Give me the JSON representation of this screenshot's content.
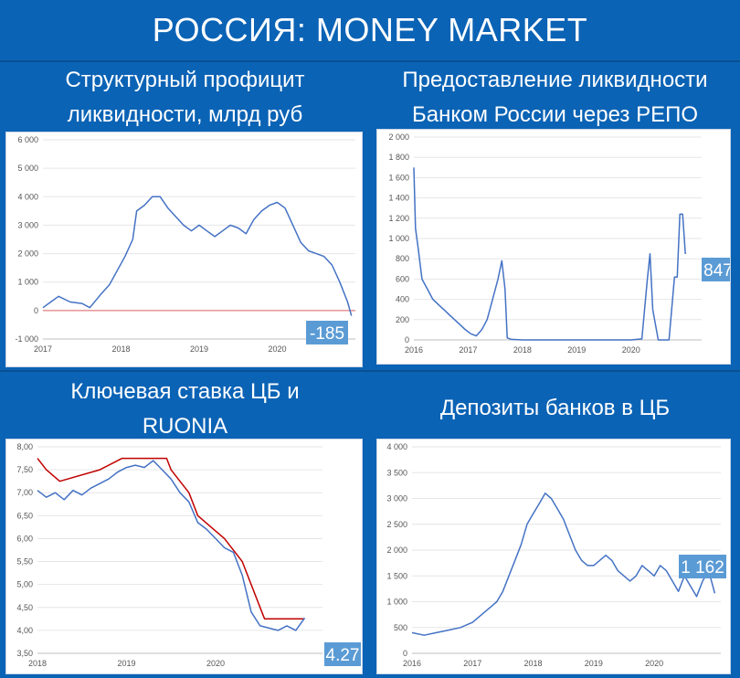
{
  "title": "РОССИЯ: MONEY MARKET",
  "panels": [
    {
      "title": "Структурный профицит\nликвидности, млрд руб"
    },
    {
      "title": "Предоставление ликвидности\nБанком России через РЕПО"
    },
    {
      "title": "Ключевая ставка ЦБ и\nRUONIA"
    },
    {
      "title": "Депозиты банков в ЦБ"
    }
  ],
  "colors": {
    "series": "#4472c4",
    "rate": "#c00000",
    "zero_line": "#e06666",
    "callout": "#5b9bd5"
  },
  "chart_data": [
    {
      "type": "line",
      "title": "Структурный профицит ликвидности, млрд руб",
      "x_ticks": [
        "2017",
        "2018",
        "2019",
        "2020"
      ],
      "y_ticks": [
        "6 000",
        "5 000",
        "4 000",
        "3 000",
        "2 000",
        "1 000",
        "0",
        "-1 000"
      ],
      "ylim": [
        -1000,
        6000
      ],
      "xlim": [
        2017,
        2021
      ],
      "reference_line": 0,
      "callout": "-185",
      "series": [
        {
          "points": [
            [
              2017.0,
              100
            ],
            [
              2017.1,
              300
            ],
            [
              2017.2,
              500
            ],
            [
              2017.35,
              300
            ],
            [
              2017.5,
              250
            ],
            [
              2017.6,
              100
            ],
            [
              2017.75,
              600
            ],
            [
              2017.85,
              900
            ],
            [
              2017.95,
              1400
            ],
            [
              2018.05,
              1900
            ],
            [
              2018.15,
              2500
            ],
            [
              2018.2,
              3500
            ],
            [
              2018.3,
              3700
            ],
            [
              2018.4,
              4000
            ],
            [
              2018.5,
              4000
            ],
            [
              2018.6,
              3600
            ],
            [
              2018.7,
              3300
            ],
            [
              2018.8,
              3000
            ],
            [
              2018.9,
              2800
            ],
            [
              2019.0,
              3000
            ],
            [
              2019.1,
              2800
            ],
            [
              2019.2,
              2600
            ],
            [
              2019.3,
              2800
            ],
            [
              2019.4,
              3000
            ],
            [
              2019.5,
              2900
            ],
            [
              2019.6,
              2700
            ],
            [
              2019.7,
              3200
            ],
            [
              2019.8,
              3500
            ],
            [
              2019.9,
              3700
            ],
            [
              2020.0,
              3800
            ],
            [
              2020.1,
              3600
            ],
            [
              2020.2,
              3000
            ],
            [
              2020.3,
              2400
            ],
            [
              2020.4,
              2100
            ],
            [
              2020.5,
              2000
            ],
            [
              2020.6,
              1900
            ],
            [
              2020.7,
              1600
            ],
            [
              2020.8,
              1000
            ],
            [
              2020.9,
              300
            ],
            [
              2020.95,
              -185
            ]
          ]
        }
      ]
    },
    {
      "type": "line",
      "title": "Предоставление ликвидности Банком России через РЕПО",
      "x_ticks": [
        "2016",
        "2017",
        "2018",
        "2019",
        "2020"
      ],
      "y_ticks": [
        "2 000",
        "1 800",
        "1 600",
        "1 400",
        "1 200",
        "1 000",
        "800",
        "600",
        "400",
        "200",
        "0"
      ],
      "ylim": [
        0,
        2000
      ],
      "xlim": [
        2016,
        2021.3
      ],
      "callout": "847",
      "series": [
        {
          "points": [
            [
              2016.0,
              1700
            ],
            [
              2016.03,
              1100
            ],
            [
              2016.08,
              900
            ],
            [
              2016.15,
              600
            ],
            [
              2016.25,
              500
            ],
            [
              2016.35,
              400
            ],
            [
              2016.45,
              350
            ],
            [
              2016.55,
              300
            ],
            [
              2016.65,
              250
            ],
            [
              2016.75,
              200
            ],
            [
              2016.85,
              150
            ],
            [
              2016.95,
              100
            ],
            [
              2017.05,
              60
            ],
            [
              2017.15,
              40
            ],
            [
              2017.25,
              100
            ],
            [
              2017.35,
              200
            ],
            [
              2017.45,
              400
            ],
            [
              2017.55,
              600
            ],
            [
              2017.62,
              780
            ],
            [
              2017.68,
              500
            ],
            [
              2017.72,
              20
            ],
            [
              2017.8,
              5
            ],
            [
              2018.0,
              0
            ],
            [
              2018.5,
              0
            ],
            [
              2019.0,
              0
            ],
            [
              2019.5,
              0
            ],
            [
              2020.0,
              0
            ],
            [
              2020.2,
              10
            ],
            [
              2020.3,
              600
            ],
            [
              2020.35,
              850
            ],
            [
              2020.4,
              300
            ],
            [
              2020.5,
              0
            ],
            [
              2020.7,
              0
            ],
            [
              2020.8,
              620
            ],
            [
              2020.85,
              620
            ],
            [
              2020.9,
              1240
            ],
            [
              2020.95,
              1240
            ],
            [
              2021.0,
              847
            ]
          ]
        }
      ]
    },
    {
      "type": "line",
      "title": "Ключевая ставка ЦБ и RUONIA",
      "x_ticks": [
        "2018",
        "2019",
        "2020"
      ],
      "y_ticks": [
        "8,00",
        "7,50",
        "7,00",
        "6,50",
        "6,00",
        "5,50",
        "5,00",
        "4,50",
        "4,00",
        "3,50"
      ],
      "ylim": [
        3.5,
        8.0
      ],
      "xlim": [
        2018,
        2021.2
      ],
      "callout": "4.27",
      "series": [
        {
          "points": [
            [
              2018.0,
              7.75
            ],
            [
              2018.1,
              7.5
            ],
            [
              2018.25,
              7.25
            ],
            [
              2018.7,
              7.5
            ],
            [
              2018.95,
              7.75
            ],
            [
              2019.45,
              7.75
            ],
            [
              2019.5,
              7.5
            ],
            [
              2019.6,
              7.25
            ],
            [
              2019.7,
              7.0
            ],
            [
              2019.8,
              6.5
            ],
            [
              2019.95,
              6.25
            ],
            [
              2020.1,
              6.0
            ],
            [
              2020.3,
              5.5
            ],
            [
              2020.5,
              4.5
            ],
            [
              2020.55,
              4.25
            ],
            [
              2021.0,
              4.25
            ]
          ]
        },
        {
          "points": [
            [
              2018.0,
              7.05
            ],
            [
              2018.1,
              6.9
            ],
            [
              2018.2,
              7.0
            ],
            [
              2018.3,
              6.85
            ],
            [
              2018.4,
              7.05
            ],
            [
              2018.5,
              6.95
            ],
            [
              2018.6,
              7.1
            ],
            [
              2018.7,
              7.2
            ],
            [
              2018.8,
              7.3
            ],
            [
              2018.9,
              7.45
            ],
            [
              2019.0,
              7.55
            ],
            [
              2019.1,
              7.6
            ],
            [
              2019.2,
              7.55
            ],
            [
              2019.3,
              7.7
            ],
            [
              2019.4,
              7.5
            ],
            [
              2019.5,
              7.3
            ],
            [
              2019.6,
              7.0
            ],
            [
              2019.7,
              6.8
            ],
            [
              2019.8,
              6.35
            ],
            [
              2019.9,
              6.2
            ],
            [
              2020.0,
              6.0
            ],
            [
              2020.1,
              5.8
            ],
            [
              2020.2,
              5.7
            ],
            [
              2020.3,
              5.2
            ],
            [
              2020.4,
              4.4
            ],
            [
              2020.5,
              4.1
            ],
            [
              2020.6,
              4.05
            ],
            [
              2020.7,
              4.0
            ],
            [
              2020.8,
              4.1
            ],
            [
              2020.9,
              4.0
            ],
            [
              2021.0,
              4.27
            ]
          ]
        }
      ]
    },
    {
      "type": "line",
      "title": "Депозиты банков в ЦБ",
      "x_ticks": [
        "2016",
        "2017",
        "2018",
        "2019",
        "2020"
      ],
      "y_ticks": [
        "4 000",
        "3 500",
        "3 000",
        "2 500",
        "2 000",
        "1 500",
        "1 000",
        "500",
        "0"
      ],
      "ylim": [
        0,
        4000
      ],
      "xlim": [
        2016,
        2021.1
      ],
      "callout": "1 162",
      "series": [
        {
          "points": [
            [
              2016.0,
              400
            ],
            [
              2016.2,
              350
            ],
            [
              2016.4,
              400
            ],
            [
              2016.6,
              450
            ],
            [
              2016.8,
              500
            ],
            [
              2017.0,
              600
            ],
            [
              2017.1,
              700
            ],
            [
              2017.2,
              800
            ],
            [
              2017.3,
              900
            ],
            [
              2017.4,
              1000
            ],
            [
              2017.5,
              1200
            ],
            [
              2017.6,
              1500
            ],
            [
              2017.7,
              1800
            ],
            [
              2017.8,
              2100
            ],
            [
              2017.9,
              2500
            ],
            [
              2018.0,
              2700
            ],
            [
              2018.1,
              2900
            ],
            [
              2018.2,
              3100
            ],
            [
              2018.3,
              3000
            ],
            [
              2018.4,
              2800
            ],
            [
              2018.5,
              2600
            ],
            [
              2018.6,
              2300
            ],
            [
              2018.7,
              2000
            ],
            [
              2018.8,
              1800
            ],
            [
              2018.9,
              1700
            ],
            [
              2019.0,
              1700
            ],
            [
              2019.1,
              1800
            ],
            [
              2019.2,
              1900
            ],
            [
              2019.3,
              1800
            ],
            [
              2019.4,
              1600
            ],
            [
              2019.5,
              1500
            ],
            [
              2019.6,
              1400
            ],
            [
              2019.7,
              1500
            ],
            [
              2019.8,
              1700
            ],
            [
              2019.9,
              1600
            ],
            [
              2020.0,
              1500
            ],
            [
              2020.1,
              1700
            ],
            [
              2020.2,
              1600
            ],
            [
              2020.3,
              1400
            ],
            [
              2020.4,
              1200
            ],
            [
              2020.5,
              1500
            ],
            [
              2020.6,
              1300
            ],
            [
              2020.7,
              1100
            ],
            [
              2020.8,
              1400
            ],
            [
              2020.9,
              1600
            ],
            [
              2021.0,
              1162
            ]
          ]
        }
      ]
    }
  ]
}
